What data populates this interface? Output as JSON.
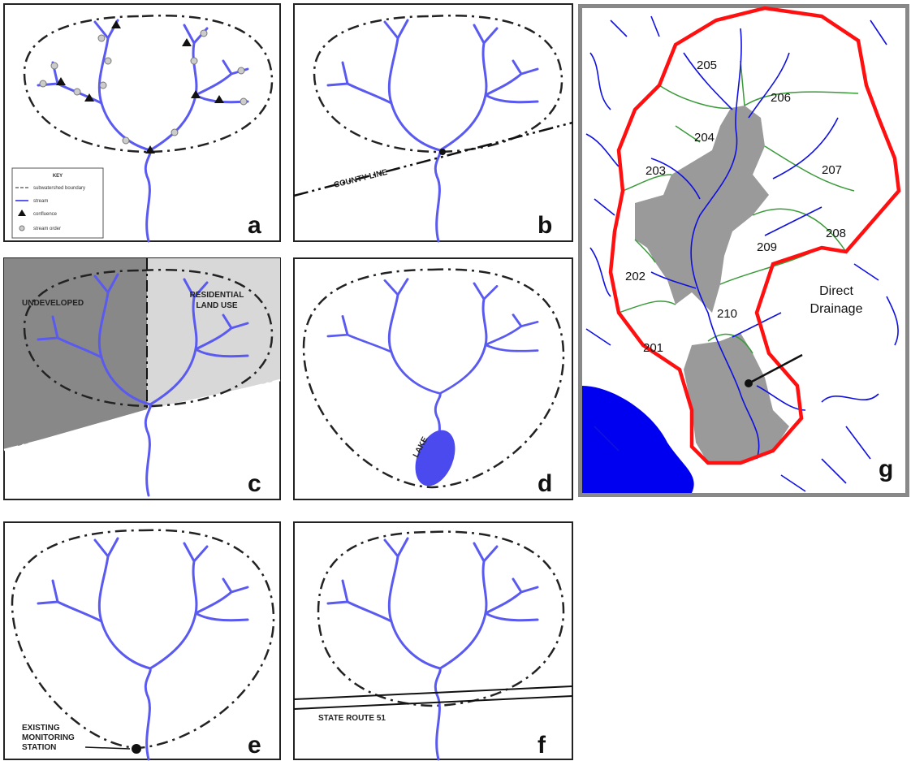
{
  "panel_a": {
    "letter": "a",
    "key_title": "KEY",
    "key_items": [
      "subwatershed boundary",
      "stream",
      "confluence",
      "stream order"
    ]
  },
  "panel_b": {
    "letter": "b",
    "label": "COUNTY LINE"
  },
  "panel_c": {
    "letter": "c",
    "left_label": "UNDEVELOPED",
    "right_label": [
      "RESIDENTIAL",
      "LAND USE"
    ]
  },
  "panel_d": {
    "letter": "d",
    "label": "LAKE"
  },
  "panel_e": {
    "letter": "e",
    "label": [
      "EXISTING",
      "MONITORING",
      "STATION"
    ]
  },
  "panel_f": {
    "letter": "f",
    "label": "STATE ROUTE 51"
  },
  "panel_g": {
    "letter": "g",
    "subwatersheds": [
      "205",
      "206",
      "204",
      "203",
      "207",
      "208",
      "209",
      "202",
      "210",
      "201"
    ],
    "direct_label": [
      "Direct",
      "Drainage"
    ]
  }
}
